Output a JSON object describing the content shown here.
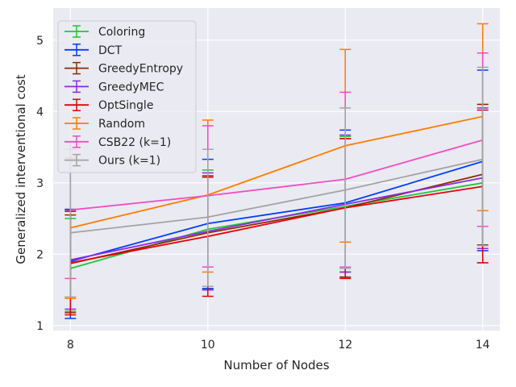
{
  "chart_data": {
    "type": "line",
    "xlabel": "Number of Nodes",
    "ylabel": "Generalized interventional cost",
    "x": [
      8,
      10,
      12,
      14
    ],
    "xlim": [
      7.75,
      14.25
    ],
    "ylim": [
      0.93,
      5.45
    ],
    "xticks": [
      "8",
      "10",
      "12",
      "14"
    ],
    "yticks": [
      "1",
      "2",
      "3",
      "4",
      "5"
    ],
    "grid": true,
    "legend_position": "upper-left",
    "series": [
      {
        "name": "Coloring",
        "color": "#1ac938",
        "values": [
          1.8,
          2.35,
          2.67,
          3.0
        ],
        "err_low": [
          1.2,
          1.52,
          1.68,
          1.88
        ],
        "err_high": [
          2.5,
          3.18,
          3.65,
          4.1
        ]
      },
      {
        "name": "DCT",
        "color": "#023eff",
        "values": [
          1.9,
          2.43,
          2.72,
          3.3
        ],
        "err_low": [
          1.1,
          1.52,
          1.75,
          2.05
        ],
        "err_high": [
          2.63,
          3.33,
          3.74,
          4.58
        ]
      },
      {
        "name": "GreedyEntropy",
        "color": "#8b2e00",
        "values": [
          1.87,
          2.3,
          2.65,
          3.12
        ],
        "err_low": [
          1.18,
          1.5,
          1.68,
          2.13
        ],
        "err_high": [
          2.55,
          3.1,
          3.62,
          4.1
        ]
      },
      {
        "name": "GreedyMEC",
        "color": "#8b2be2",
        "values": [
          1.92,
          2.32,
          2.7,
          3.07
        ],
        "err_low": [
          1.23,
          1.5,
          1.75,
          2.08
        ],
        "err_high": [
          2.62,
          3.14,
          3.67,
          4.05
        ]
      },
      {
        "name": "OptSingle",
        "color": "#e8000b",
        "values": [
          1.88,
          2.25,
          2.65,
          2.95
        ],
        "err_low": [
          1.15,
          1.41,
          1.66,
          1.88
        ],
        "err_high": [
          2.6,
          3.08,
          3.62,
          4.02
        ]
      },
      {
        "name": "Random",
        "color": "#ff7c00",
        "values": [
          2.37,
          2.83,
          3.52,
          3.93
        ],
        "err_low": [
          1.38,
          1.75,
          2.17,
          2.61
        ],
        "err_high": [
          3.35,
          3.88,
          4.87,
          5.23
        ]
      },
      {
        "name": "CSB22 (k=1)",
        "color": "#f14cc1",
        "values": [
          2.62,
          2.82,
          3.05,
          3.6
        ],
        "err_low": [
          1.66,
          1.82,
          1.82,
          2.39
        ],
        "err_high": [
          3.57,
          3.8,
          4.27,
          4.82
        ]
      },
      {
        "name": "Ours (k=1)",
        "color": "#a3a3a3",
        "values": [
          2.3,
          2.52,
          2.9,
          3.33
        ],
        "err_low": [
          1.4,
          1.55,
          1.8,
          2.12
        ],
        "err_high": [
          3.47,
          3.47,
          4.05,
          4.62
        ]
      }
    ]
  }
}
